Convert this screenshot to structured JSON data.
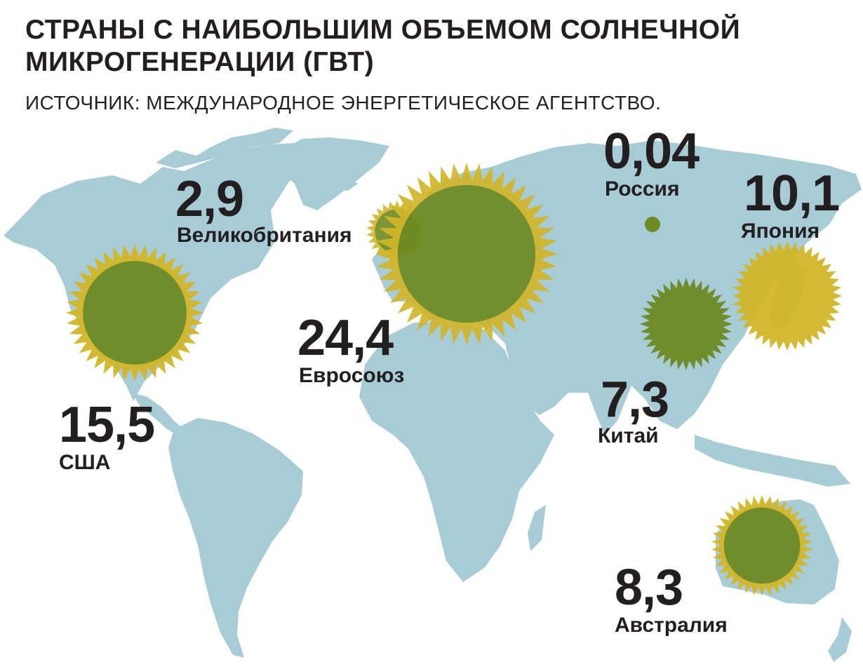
{
  "title": "Страны с наибольшим объемом солнечной микрогенерации (ГВт)",
  "source": "ИСТОЧНИК: МЕЖДУНАРОДНОЕ ЭНЕРГЕТИЧЕСКОЕ АГЕНТСТВО.",
  "unit": "ГВт",
  "colors": {
    "ocean": "#ffffff",
    "land": "#a7ccd6",
    "sun_yellow": "#d2b629",
    "sun_olive": "#6e8a22",
    "text": "#231f20"
  },
  "countries": [
    {
      "id": "uk",
      "name": "Великобритания",
      "value": "2,9",
      "gw": 2.9
    },
    {
      "id": "eu",
      "name": "Евросоюз",
      "value": "24,4",
      "gw": 24.4
    },
    {
      "id": "usa",
      "name": "США",
      "value": "15,5",
      "gw": 15.5
    },
    {
      "id": "russia",
      "name": "Россия",
      "value": "0,04",
      "gw": 0.04
    },
    {
      "id": "japan",
      "name": "Япония",
      "value": "10,1",
      "gw": 10.1
    },
    {
      "id": "china",
      "name": "Китай",
      "value": "7,3",
      "gw": 7.3
    },
    {
      "id": "australia",
      "name": "Австралия",
      "value": "8,3",
      "gw": 8.3
    }
  ]
}
